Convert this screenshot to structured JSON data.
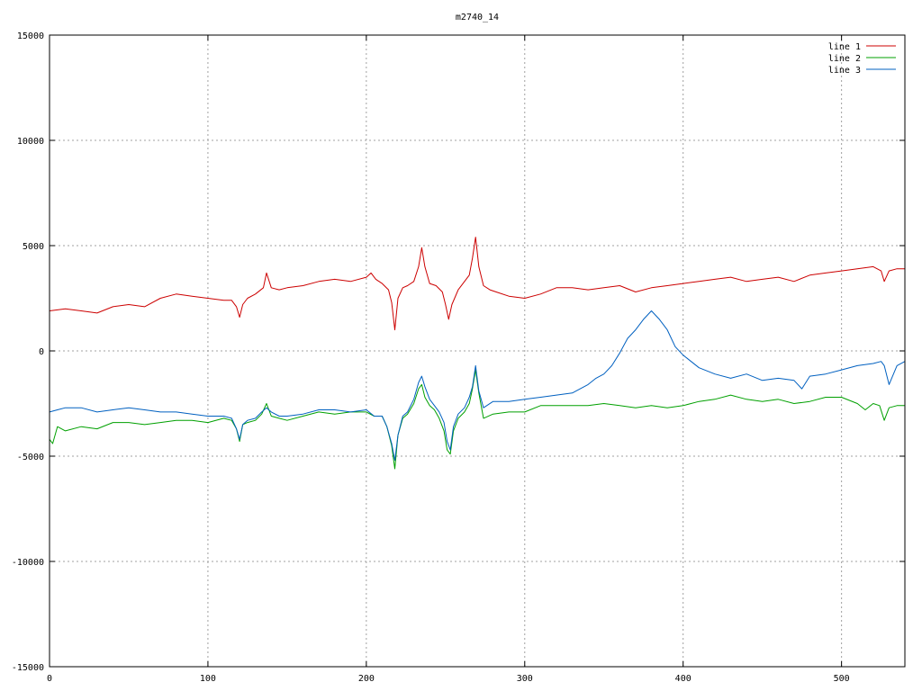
{
  "chart_data": {
    "type": "line",
    "title": "m2740_14",
    "xlabel": "",
    "ylabel": "",
    "xlim": [
      0,
      540
    ],
    "ylim": [
      -15000,
      15000
    ],
    "xticks": [
      0,
      100,
      200,
      300,
      400,
      500
    ],
    "yticks": [
      -15000,
      -10000,
      -5000,
      0,
      5000,
      10000,
      15000
    ],
    "grid": true,
    "legend_position": "top-right",
    "series": [
      {
        "name": "line 1",
        "color": "#cc0000",
        "x": [
          0,
          10,
          20,
          30,
          40,
          50,
          60,
          70,
          80,
          90,
          100,
          110,
          115,
          118,
          120,
          122,
          125,
          130,
          135,
          137,
          140,
          145,
          150,
          160,
          170,
          180,
          190,
          200,
          203,
          206,
          210,
          214,
          216,
          218,
          220,
          223,
          226,
          230,
          233,
          235,
          237,
          240,
          244,
          248,
          250,
          252,
          254,
          258,
          262,
          265,
          267,
          269,
          271,
          274,
          278,
          282,
          290,
          300,
          310,
          320,
          330,
          340,
          350,
          360,
          370,
          380,
          390,
          400,
          410,
          420,
          430,
          440,
          450,
          460,
          470,
          480,
          490,
          500,
          510,
          520,
          525,
          527,
          530,
          535,
          540
        ],
        "values": [
          1900,
          2000,
          1900,
          1800,
          2100,
          2200,
          2100,
          2500,
          2700,
          2600,
          2500,
          2400,
          2400,
          2100,
          1600,
          2200,
          2500,
          2700,
          3000,
          3700,
          3000,
          2900,
          3000,
          3100,
          3300,
          3400,
          3300,
          3500,
          3700,
          3400,
          3200,
          2900,
          2300,
          1000,
          2500,
          3000,
          3100,
          3300,
          4000,
          4900,
          4000,
          3200,
          3100,
          2800,
          2200,
          1500,
          2200,
          2900,
          3300,
          3600,
          4400,
          5400,
          4000,
          3100,
          2900,
          2800,
          2600,
          2500,
          2700,
          3000,
          3000,
          2900,
          3000,
          3100,
          2800,
          3000,
          3100,
          3200,
          3300,
          3400,
          3500,
          3300,
          3400,
          3500,
          3300,
          3600,
          3700,
          3800,
          3900,
          4000,
          3800,
          3300,
          3800,
          3900,
          3900
        ]
      },
      {
        "name": "line 2",
        "color": "#00a000",
        "x": [
          0,
          2,
          5,
          10,
          20,
          30,
          40,
          50,
          60,
          70,
          80,
          90,
          100,
          110,
          115,
          118,
          120,
          122,
          125,
          130,
          134,
          137,
          140,
          145,
          150,
          160,
          170,
          180,
          190,
          200,
          205,
          210,
          213,
          216,
          218,
          220,
          223,
          226,
          230,
          233,
          235,
          237,
          240,
          243,
          246,
          249,
          251,
          253,
          255,
          258,
          262,
          265,
          267,
          269,
          271,
          274,
          280,
          290,
          300,
          310,
          320,
          330,
          340,
          350,
          360,
          370,
          380,
          390,
          400,
          410,
          420,
          430,
          440,
          450,
          460,
          470,
          480,
          490,
          500,
          510,
          515,
          520,
          524,
          527,
          530,
          535,
          540
        ],
        "values": [
          -4200,
          -4400,
          -3600,
          -3800,
          -3600,
          -3700,
          -3400,
          -3400,
          -3500,
          -3400,
          -3300,
          -3300,
          -3400,
          -3200,
          -3300,
          -3700,
          -4300,
          -3500,
          -3400,
          -3300,
          -3000,
          -2500,
          -3100,
          -3200,
          -3300,
          -3100,
          -2900,
          -3000,
          -2900,
          -2900,
          -3100,
          -3100,
          -3600,
          -4500,
          -5600,
          -4000,
          -3200,
          -3000,
          -2500,
          -1800,
          -1600,
          -2200,
          -2600,
          -2800,
          -3200,
          -3800,
          -4700,
          -4900,
          -3800,
          -3200,
          -2900,
          -2500,
          -1800,
          -900,
          -2000,
          -3200,
          -3000,
          -2900,
          -2900,
          -2600,
          -2600,
          -2600,
          -2600,
          -2500,
          -2600,
          -2700,
          -2600,
          -2700,
          -2600,
          -2400,
          -2300,
          -2100,
          -2300,
          -2400,
          -2300,
          -2500,
          -2400,
          -2200,
          -2200,
          -2500,
          -2800,
          -2500,
          -2600,
          -3300,
          -2700,
          -2600,
          -2600
        ]
      },
      {
        "name": "line 3",
        "color": "#0060c0",
        "x": [
          0,
          5,
          10,
          20,
          30,
          40,
          50,
          60,
          70,
          80,
          90,
          100,
          110,
          115,
          118,
          120,
          122,
          125,
          130,
          134,
          137,
          140,
          145,
          150,
          160,
          170,
          180,
          190,
          200,
          205,
          210,
          213,
          216,
          218,
          220,
          223,
          226,
          230,
          233,
          235,
          237,
          240,
          243,
          246,
          249,
          251,
          253,
          255,
          258,
          262,
          265,
          267,
          269,
          271,
          274,
          280,
          290,
          300,
          310,
          320,
          330,
          340,
          345,
          350,
          355,
          360,
          365,
          370,
          375,
          380,
          385,
          390,
          395,
          400,
          410,
          420,
          430,
          440,
          450,
          460,
          470,
          475,
          480,
          490,
          500,
          510,
          520,
          525,
          527,
          530,
          535,
          540
        ],
        "values": [
          -2900,
          -2800,
          -2700,
          -2700,
          -2900,
          -2800,
          -2700,
          -2800,
          -2900,
          -2900,
          -3000,
          -3100,
          -3100,
          -3200,
          -3700,
          -4200,
          -3500,
          -3300,
          -3200,
          -2900,
          -2700,
          -2900,
          -3100,
          -3100,
          -3000,
          -2800,
          -2800,
          -2900,
          -2800,
          -3100,
          -3100,
          -3600,
          -4400,
          -5200,
          -4000,
          -3100,
          -2900,
          -2300,
          -1500,
          -1200,
          -1700,
          -2300,
          -2600,
          -2900,
          -3400,
          -4300,
          -4700,
          -3600,
          -3000,
          -2700,
          -2200,
          -1700,
          -700,
          -1900,
          -2700,
          -2400,
          -2400,
          -2300,
          -2200,
          -2100,
          -2000,
          -1600,
          -1300,
          -1100,
          -700,
          -100,
          600,
          1000,
          1500,
          1900,
          1500,
          1000,
          200,
          -200,
          -800,
          -1100,
          -1300,
          -1100,
          -1400,
          -1300,
          -1400,
          -1800,
          -1200,
          -1100,
          -900,
          -700,
          -600,
          -500,
          -700,
          -1600,
          -700,
          -500
        ]
      }
    ]
  }
}
